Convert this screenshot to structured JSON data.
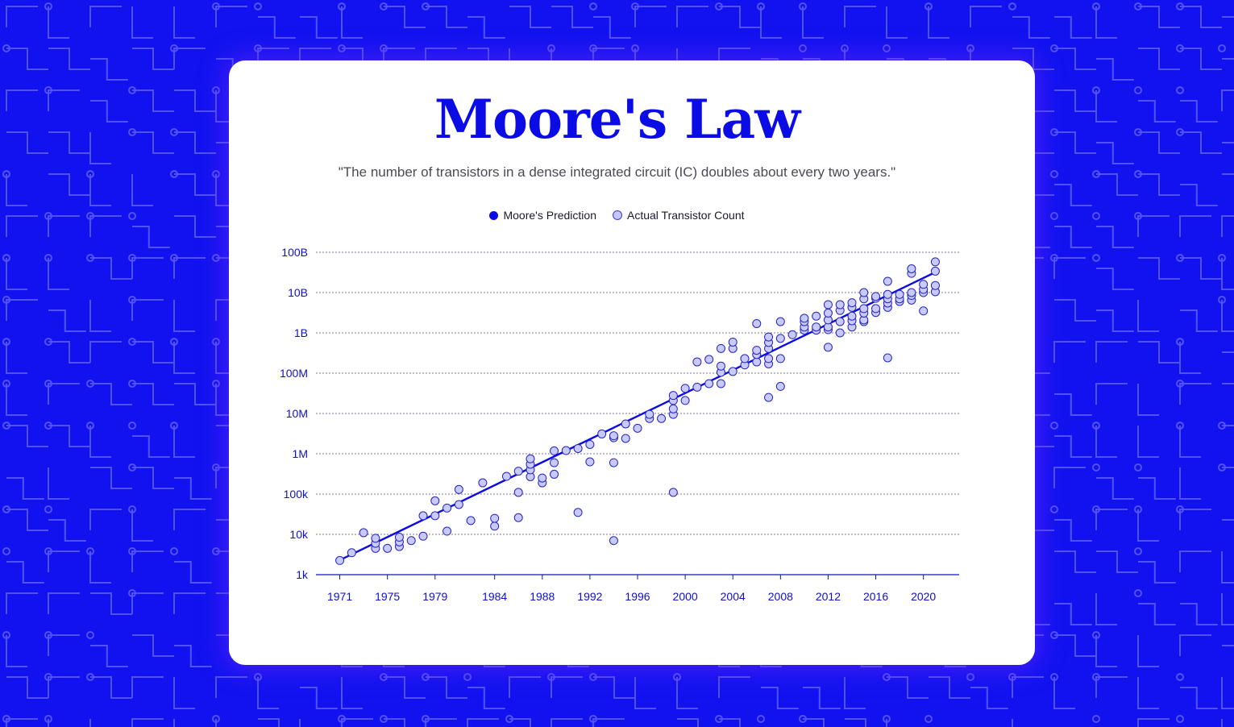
{
  "colors": {
    "background": "#1212f0",
    "circuit": "#5a5aff",
    "accent": "#0b0be6",
    "point_fill": "#c8caff",
    "point_stroke": "#2424c0"
  },
  "chart_data": {
    "type": "scatter",
    "title": "Moore's Law",
    "subtitle": "\"The number of transistors in a dense integrated circuit (IC) doubles about every two years.\"",
    "xlabel": "",
    "ylabel": "",
    "x_scale": "linear",
    "y_scale": "log",
    "xlim": [
      1969,
      2023
    ],
    "ylim": [
      1000,
      100000000000
    ],
    "grid": true,
    "legend_position": "top-center",
    "x_ticks": [
      {
        "value": 1971,
        "label": "1971"
      },
      {
        "value": 1975,
        "label": "1975"
      },
      {
        "value": 1979,
        "label": "1979"
      },
      {
        "value": 1984,
        "label": "1984"
      },
      {
        "value": 1988,
        "label": "1988"
      },
      {
        "value": 1992,
        "label": "1992"
      },
      {
        "value": 1996,
        "label": "1996"
      },
      {
        "value": 2000,
        "label": "2000"
      },
      {
        "value": 2004,
        "label": "2004"
      },
      {
        "value": 2008,
        "label": "2008"
      },
      {
        "value": 2012,
        "label": "2012"
      },
      {
        "value": 2016,
        "label": "2016"
      },
      {
        "value": 2020,
        "label": "2020"
      }
    ],
    "y_ticks": [
      {
        "value": 1000,
        "label": "1k"
      },
      {
        "value": 10000,
        "label": "10k"
      },
      {
        "value": 100000,
        "label": "100k"
      },
      {
        "value": 1000000,
        "label": "1M"
      },
      {
        "value": 10000000,
        "label": "10M"
      },
      {
        "value": 100000000,
        "label": "100M"
      },
      {
        "value": 1000000000,
        "label": "1B"
      },
      {
        "value": 10000000000,
        "label": "10B"
      },
      {
        "value": 100000000000,
        "label": "100B"
      }
    ],
    "series": [
      {
        "name": "Moore's Prediction",
        "kind": "line",
        "color": "#0b0be6",
        "points": [
          [
            1971,
            2300
          ],
          [
            2021,
            32000000000
          ]
        ]
      },
      {
        "name": "Actual Transistor Count",
        "kind": "scatter",
        "color": "#c8caff",
        "points": [
          [
            1971,
            2250
          ],
          [
            1972,
            3500
          ],
          [
            1973,
            11000
          ],
          [
            1974,
            4500
          ],
          [
            1974,
            6000
          ],
          [
            1974,
            8000
          ],
          [
            1975,
            4500
          ],
          [
            1976,
            5000
          ],
          [
            1976,
            6500
          ],
          [
            1976,
            8500
          ],
          [
            1977,
            7000
          ],
          [
            1978,
            9000
          ],
          [
            1978,
            29000
          ],
          [
            1979,
            29000
          ],
          [
            1979,
            68000
          ],
          [
            1980,
            12000
          ],
          [
            1980,
            45000
          ],
          [
            1981,
            55000
          ],
          [
            1981,
            130000
          ],
          [
            1982,
            22000
          ],
          [
            1983,
            190000
          ],
          [
            1984,
            16000
          ],
          [
            1984,
            25000
          ],
          [
            1985,
            275000
          ],
          [
            1986,
            26000
          ],
          [
            1986,
            110000
          ],
          [
            1986,
            370000
          ],
          [
            1987,
            270000
          ],
          [
            1987,
            400000
          ],
          [
            1987,
            550000
          ],
          [
            1987,
            750000
          ],
          [
            1988,
            190000
          ],
          [
            1988,
            250000
          ],
          [
            1989,
            310000
          ],
          [
            1989,
            600000
          ],
          [
            1989,
            1180000
          ],
          [
            1990,
            1200000
          ],
          [
            1991,
            35000
          ],
          [
            1991,
            1350000
          ],
          [
            1992,
            630000
          ],
          [
            1992,
            1700000
          ],
          [
            1993,
            3100000
          ],
          [
            1994,
            7000
          ],
          [
            1994,
            600000
          ],
          [
            1994,
            2500000
          ],
          [
            1994,
            2800000
          ],
          [
            1995,
            2400000
          ],
          [
            1995,
            5500000
          ],
          [
            1996,
            4300000
          ],
          [
            1997,
            7500000
          ],
          [
            1997,
            9500000
          ],
          [
            1998,
            7500000
          ],
          [
            1999,
            110000
          ],
          [
            1999,
            9500000
          ],
          [
            1999,
            13000000
          ],
          [
            1999,
            21000000
          ],
          [
            1999,
            28000000
          ],
          [
            2000,
            21000000
          ],
          [
            2000,
            42000000
          ],
          [
            2001,
            45000000
          ],
          [
            2001,
            190000000
          ],
          [
            2002,
            55000000
          ],
          [
            2002,
            220000000
          ],
          [
            2003,
            55000000
          ],
          [
            2003,
            105000000
          ],
          [
            2003,
            150000000
          ],
          [
            2003,
            410000000
          ],
          [
            2004,
            110000000
          ],
          [
            2004,
            410000000
          ],
          [
            2004,
            590000000
          ],
          [
            2005,
            160000000
          ],
          [
            2005,
            230000000
          ],
          [
            2006,
            190000000
          ],
          [
            2006,
            290000000
          ],
          [
            2006,
            370000000
          ],
          [
            2006,
            1700000000
          ],
          [
            2007,
            25000000
          ],
          [
            2007,
            170000000
          ],
          [
            2007,
            230000000
          ],
          [
            2007,
            410000000
          ],
          [
            2007,
            580000000
          ],
          [
            2007,
            790000000
          ],
          [
            2008,
            47000000
          ],
          [
            2008,
            230000000
          ],
          [
            2008,
            730000000
          ],
          [
            2008,
            1900000000
          ],
          [
            2009,
            900000000
          ],
          [
            2010,
            1170000000
          ],
          [
            2010,
            1400000000
          ],
          [
            2010,
            1900000000
          ],
          [
            2010,
            2300000000
          ],
          [
            2011,
            1170000000
          ],
          [
            2011,
            1400000000
          ],
          [
            2011,
            2600000000
          ],
          [
            2012,
            440000000
          ],
          [
            2012,
            1200000000
          ],
          [
            2012,
            1400000000
          ],
          [
            2012,
            2100000000
          ],
          [
            2012,
            3100000000
          ],
          [
            2012,
            5000000000
          ],
          [
            2013,
            1000000000
          ],
          [
            2013,
            1900000000
          ],
          [
            2013,
            3600000000
          ],
          [
            2013,
            5000000000
          ],
          [
            2014,
            1400000000
          ],
          [
            2014,
            2000000000
          ],
          [
            2014,
            2600000000
          ],
          [
            2014,
            4300000000
          ],
          [
            2014,
            5600000000
          ],
          [
            2015,
            1900000000
          ],
          [
            2015,
            2100000000
          ],
          [
            2015,
            3100000000
          ],
          [
            2015,
            4000000000
          ],
          [
            2015,
            7000000000
          ],
          [
            2015,
            10000000000
          ],
          [
            2016,
            3200000000
          ],
          [
            2016,
            4000000000
          ],
          [
            2016,
            7200000000
          ],
          [
            2016,
            8000000000
          ],
          [
            2017,
            240000000
          ],
          [
            2017,
            4300000000
          ],
          [
            2017,
            5500000000
          ],
          [
            2017,
            7000000000
          ],
          [
            2017,
            9000000000
          ],
          [
            2017,
            19000000000
          ],
          [
            2018,
            6000000000
          ],
          [
            2018,
            7000000000
          ],
          [
            2018,
            9000000000
          ],
          [
            2019,
            6500000000
          ],
          [
            2019,
            8500000000
          ],
          [
            2019,
            10000000000
          ],
          [
            2019,
            30000000000
          ],
          [
            2019,
            39000000000
          ],
          [
            2020,
            3500000000
          ],
          [
            2020,
            10000000000
          ],
          [
            2020,
            12000000000
          ],
          [
            2020,
            16000000000
          ],
          [
            2021,
            10500000000
          ],
          [
            2021,
            15000000000
          ],
          [
            2021,
            34000000000
          ],
          [
            2021,
            58000000000
          ]
        ]
      }
    ]
  }
}
